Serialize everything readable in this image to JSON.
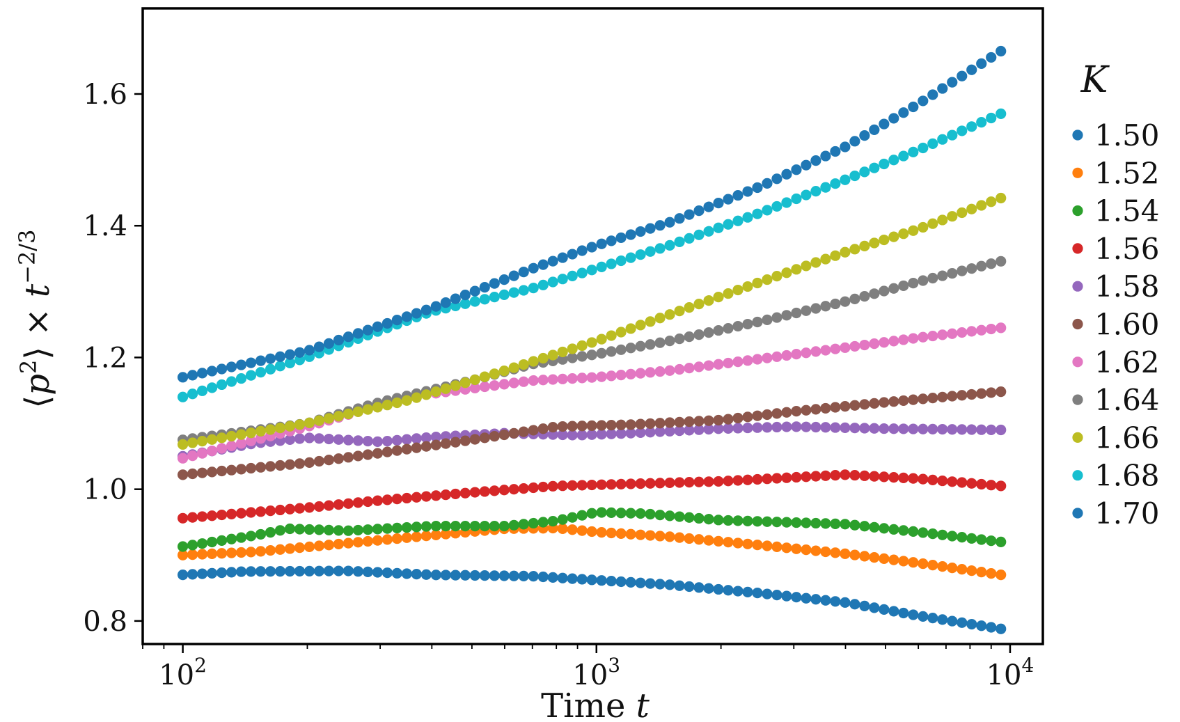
{
  "chart_data": {
    "type": "scatter",
    "title": "",
    "xlabel": {
      "main": "Time ",
      "var": "t"
    },
    "ylabel": {
      "lb": "⟨",
      "p": "p",
      "sq": "2",
      "rb": "⟩",
      "times": " × ",
      "t": "t",
      "exp": "−2/3"
    },
    "xscale": "log",
    "xlim": [
      80,
      12000
    ],
    "ylim": [
      0.765,
      1.73
    ],
    "x_ticks": [
      {
        "value": 100,
        "base": "10",
        "exp": "2"
      },
      {
        "value": 1000,
        "base": "10",
        "exp": "3"
      },
      {
        "value": 10000,
        "base": "10",
        "exp": "4"
      }
    ],
    "y_ticks": [
      {
        "value": 0.8,
        "label": "0.8"
      },
      {
        "value": 1.0,
        "label": "1.0"
      },
      {
        "value": 1.2,
        "label": "1.2"
      },
      {
        "value": 1.4,
        "label": "1.4"
      },
      {
        "value": 1.6,
        "label": "1.6"
      }
    ],
    "legend": {
      "title": "K",
      "placement": "right-outside"
    },
    "x_range": [
      100,
      9500
    ],
    "series": [
      {
        "name": "1.50",
        "color": "#1f77b4",
        "keypoints": [
          [
            100,
            0.87
          ],
          [
            140,
            0.875
          ],
          [
            250,
            0.876
          ],
          [
            400,
            0.87
          ],
          [
            700,
            0.868
          ],
          [
            1000,
            0.862
          ],
          [
            1500,
            0.855
          ],
          [
            2500,
            0.842
          ],
          [
            4000,
            0.828
          ],
          [
            6000,
            0.808
          ],
          [
            9500,
            0.788
          ]
        ]
      },
      {
        "name": "1.52",
        "color": "#ff7f0e",
        "keypoints": [
          [
            100,
            0.9
          ],
          [
            150,
            0.905
          ],
          [
            250,
            0.918
          ],
          [
            400,
            0.93
          ],
          [
            600,
            0.94
          ],
          [
            800,
            0.941
          ],
          [
            1000,
            0.935
          ],
          [
            1500,
            0.928
          ],
          [
            2500,
            0.915
          ],
          [
            4000,
            0.902
          ],
          [
            6000,
            0.888
          ],
          [
            9500,
            0.87
          ]
        ]
      },
      {
        "name": "1.54",
        "color": "#2ca02c",
        "keypoints": [
          [
            100,
            0.913
          ],
          [
            150,
            0.93
          ],
          [
            180,
            0.94
          ],
          [
            250,
            0.937
          ],
          [
            400,
            0.944
          ],
          [
            600,
            0.944
          ],
          [
            800,
            0.952
          ],
          [
            1000,
            0.965
          ],
          [
            1300,
            0.963
          ],
          [
            2000,
            0.953
          ],
          [
            4000,
            0.947
          ],
          [
            6000,
            0.935
          ],
          [
            9500,
            0.92
          ]
        ]
      },
      {
        "name": "1.56",
        "color": "#d62728",
        "keypoints": [
          [
            100,
            0.956
          ],
          [
            200,
            0.972
          ],
          [
            300,
            0.983
          ],
          [
            500,
            0.995
          ],
          [
            800,
            1.005
          ],
          [
            1200,
            1.008
          ],
          [
            2000,
            1.012
          ],
          [
            3000,
            1.018
          ],
          [
            4000,
            1.022
          ],
          [
            6000,
            1.016
          ],
          [
            9500,
            1.005
          ]
        ]
      },
      {
        "name": "1.58",
        "color": "#9467bd",
        "keypoints": [
          [
            100,
            1.05
          ],
          [
            150,
            1.07
          ],
          [
            200,
            1.078
          ],
          [
            300,
            1.072
          ],
          [
            400,
            1.079
          ],
          [
            600,
            1.085
          ],
          [
            900,
            1.082
          ],
          [
            1200,
            1.085
          ],
          [
            2000,
            1.092
          ],
          [
            3000,
            1.095
          ],
          [
            5000,
            1.092
          ],
          [
            9500,
            1.09
          ]
        ]
      },
      {
        "name": "1.60",
        "color": "#8c564b",
        "keypoints": [
          [
            100,
            1.022
          ],
          [
            200,
            1.04
          ],
          [
            300,
            1.055
          ],
          [
            500,
            1.075
          ],
          [
            800,
            1.095
          ],
          [
            1200,
            1.098
          ],
          [
            2000,
            1.105
          ],
          [
            3000,
            1.118
          ],
          [
            5000,
            1.132
          ],
          [
            9500,
            1.148
          ]
        ]
      },
      {
        "name": "1.62",
        "color": "#e377c2",
        "keypoints": [
          [
            100,
            1.047
          ],
          [
            200,
            1.095
          ],
          [
            350,
            1.14
          ],
          [
            500,
            1.153
          ],
          [
            700,
            1.165
          ],
          [
            1000,
            1.17
          ],
          [
            1500,
            1.18
          ],
          [
            2500,
            1.198
          ],
          [
            4000,
            1.215
          ],
          [
            6000,
            1.23
          ],
          [
            9500,
            1.245
          ]
        ]
      },
      {
        "name": "1.64",
        "color": "#7f7f7f",
        "keypoints": [
          [
            100,
            1.075
          ],
          [
            200,
            1.1
          ],
          [
            300,
            1.132
          ],
          [
            500,
            1.165
          ],
          [
            700,
            1.19
          ],
          [
            1000,
            1.205
          ],
          [
            1500,
            1.225
          ],
          [
            2500,
            1.255
          ],
          [
            4000,
            1.285
          ],
          [
            6000,
            1.315
          ],
          [
            9500,
            1.346
          ]
        ]
      },
      {
        "name": "1.66",
        "color": "#bcbd22",
        "keypoints": [
          [
            100,
            1.068
          ],
          [
            200,
            1.1
          ],
          [
            350,
            1.135
          ],
          [
            600,
            1.18
          ],
          [
            1000,
            1.225
          ],
          [
            1500,
            1.265
          ],
          [
            2500,
            1.315
          ],
          [
            4000,
            1.36
          ],
          [
            6000,
            1.395
          ],
          [
            9500,
            1.442
          ]
        ]
      },
      {
        "name": "1.68",
        "color": "#17becf",
        "keypoints": [
          [
            100,
            1.14
          ],
          [
            200,
            1.2
          ],
          [
            400,
            1.27
          ],
          [
            700,
            1.305
          ],
          [
            1000,
            1.335
          ],
          [
            1500,
            1.37
          ],
          [
            2500,
            1.42
          ],
          [
            4000,
            1.47
          ],
          [
            6000,
            1.515
          ],
          [
            9500,
            1.57
          ]
        ]
      },
      {
        "name": "1.70",
        "color": "#1f77b4",
        "keypoints": [
          [
            100,
            1.17
          ],
          [
            200,
            1.21
          ],
          [
            400,
            1.275
          ],
          [
            700,
            1.335
          ],
          [
            1000,
            1.37
          ],
          [
            1500,
            1.405
          ],
          [
            2500,
            1.46
          ],
          [
            4000,
            1.52
          ],
          [
            6000,
            1.585
          ],
          [
            9500,
            1.665
          ]
        ]
      }
    ]
  }
}
